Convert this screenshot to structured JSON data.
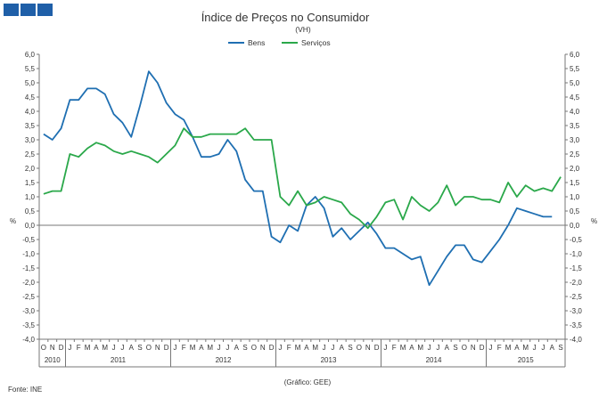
{
  "header": {
    "logo_name": "gee-logo",
    "logo_color": "#1f5fa8"
  },
  "footer": {
    "source": "Fonte: INE",
    "credit": "(Gráfico: GEE)"
  },
  "chart_data": {
    "type": "line",
    "title": "Índice de Preços no Consumidor",
    "subtitle": "(VH)",
    "ylabel_left": "%",
    "ylabel_right": "%",
    "ylim": [
      -4,
      6
    ],
    "yticks": [
      "6,0",
      "5,5",
      "5,0",
      "4,5",
      "4,0",
      "3,5",
      "3,0",
      "2,5",
      "2,0",
      "1,5",
      "1,0",
      "0,5",
      "0,0",
      "-0,5",
      "-1,0",
      "-1,5",
      "-2,0",
      "-2,5",
      "-3,0",
      "-3,5",
      "-4,0"
    ],
    "legend_position": "top-center",
    "grid": false,
    "month_labels": [
      "O",
      "N",
      "D",
      "J",
      "F",
      "M",
      "A",
      "M",
      "J",
      "J",
      "A",
      "S",
      "O",
      "N",
      "D",
      "J",
      "F",
      "M",
      "A",
      "M",
      "J",
      "J",
      "A",
      "S",
      "O",
      "N",
      "D",
      "J",
      "F",
      "M",
      "A",
      "M",
      "J",
      "J",
      "A",
      "S",
      "O",
      "N",
      "D",
      "J",
      "F",
      "M",
      "A",
      "M",
      "J",
      "J",
      "A",
      "S",
      "O",
      "N",
      "D",
      "J",
      "F",
      "M",
      "A",
      "M",
      "J",
      "J",
      "A",
      "S"
    ],
    "years": [
      {
        "label": "2010",
        "start": 0,
        "span": 3
      },
      {
        "label": "2011",
        "start": 3,
        "span": 12
      },
      {
        "label": "2012",
        "start": 15,
        "span": 12
      },
      {
        "label": "2013",
        "start": 27,
        "span": 12
      },
      {
        "label": "2014",
        "start": 39,
        "span": 12
      },
      {
        "label": "2015",
        "start": 51,
        "span": 9
      }
    ],
    "series": [
      {
        "name": "Bens",
        "color": "#1f6fb2",
        "values": [
          3.2,
          3.0,
          3.4,
          4.4,
          4.4,
          4.8,
          4.8,
          4.6,
          3.9,
          3.6,
          3.1,
          4.2,
          5.4,
          5.0,
          4.3,
          3.9,
          3.7,
          3.1,
          2.4,
          2.4,
          2.5,
          3.0,
          2.6,
          1.6,
          1.2,
          1.2,
          -0.4,
          -0.6,
          0.0,
          -0.2,
          0.7,
          1.0,
          0.6,
          -0.4,
          -0.1,
          -0.5,
          -0.2,
          0.1,
          -0.3,
          -0.8,
          -0.8,
          -1.0,
          -1.2,
          -1.1,
          -2.1,
          -1.6,
          -1.1,
          -0.7,
          -0.7,
          -1.2,
          -1.3,
          -0.9,
          -0.5,
          0.0,
          0.6,
          0.5,
          0.4,
          0.3,
          0.3,
          null
        ]
      },
      {
        "name": "Serviços",
        "color": "#2aa84a",
        "values": [
          1.1,
          1.2,
          1.2,
          2.5,
          2.4,
          2.7,
          2.9,
          2.8,
          2.6,
          2.5,
          2.6,
          2.5,
          2.4,
          2.2,
          2.5,
          2.8,
          3.4,
          3.1,
          3.1,
          3.2,
          3.2,
          3.2,
          3.2,
          3.4,
          3.0,
          3.0,
          3.0,
          1.0,
          0.7,
          1.2,
          0.7,
          0.8,
          1.0,
          0.9,
          0.8,
          0.4,
          0.2,
          -0.1,
          0.3,
          0.8,
          0.9,
          0.2,
          1.0,
          0.7,
          0.5,
          0.8,
          1.4,
          0.7,
          1.0,
          1.0,
          0.9,
          0.9,
          0.8,
          1.5,
          1.0,
          1.4,
          1.2,
          1.3,
          1.2,
          1.7
        ]
      }
    ]
  }
}
